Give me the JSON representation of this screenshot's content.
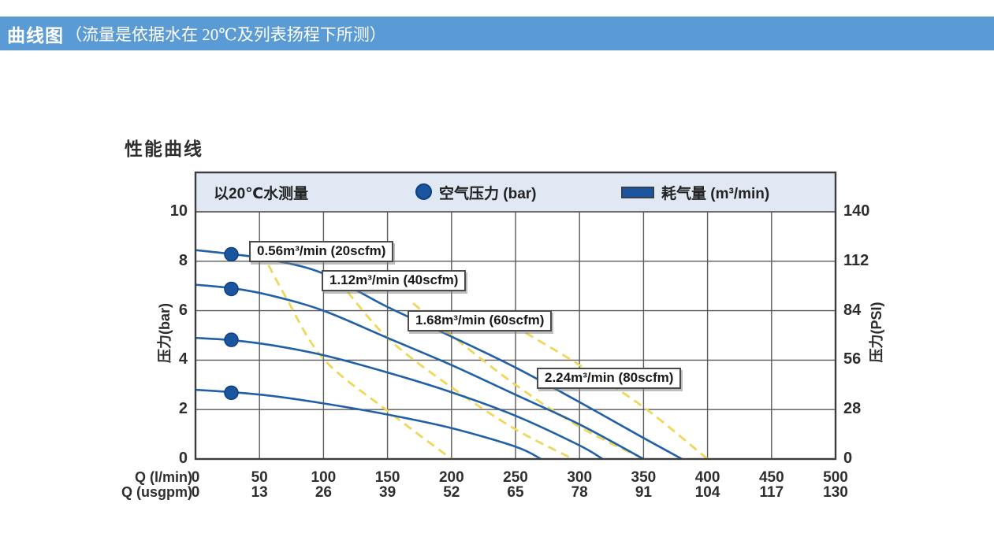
{
  "header": {
    "title_bold": "曲线图",
    "title_rest": "（流量是依据水在 20℃及列表扬程下所测）",
    "bg_color": "#5b9bd5",
    "text_color": "#ffffff"
  },
  "chart_data": {
    "type": "line",
    "title": "性能曲线",
    "legend": {
      "note": "以20℃水测量",
      "pressure_label": "空气压力 (bar)",
      "consumption_label": "耗气量 (m³/min)",
      "position": "top-band"
    },
    "grid": true,
    "axes": {
      "y_left": {
        "label": "压力(bar)",
        "range": [
          0,
          10
        ],
        "ticks": [
          0,
          2,
          4,
          6,
          8,
          10
        ]
      },
      "y_right": {
        "label": "压力(PSI)",
        "range": [
          0,
          140
        ],
        "ticks": [
          0,
          28,
          56,
          84,
          112,
          140
        ]
      },
      "x_lmin": {
        "label": "Q (l/min)",
        "range": [
          0,
          500
        ],
        "ticks": [
          0,
          50,
          100,
          150,
          200,
          250,
          300,
          350,
          400,
          450,
          500
        ]
      },
      "x_usgpm": {
        "label": "Q (usgpm)",
        "ticks": [
          0,
          13,
          26,
          39,
          52,
          65,
          78,
          91,
          104,
          117,
          130
        ]
      }
    },
    "pressure_curves": [
      {
        "name": "air-pressure-curve-1",
        "marker_at": [
          28,
          8.28
        ],
        "points": [
          [
            0,
            8.45
          ],
          [
            30,
            8.28
          ],
          [
            60,
            8.05
          ],
          [
            100,
            7.5
          ],
          [
            150,
            6.15
          ],
          [
            200,
            4.95
          ],
          [
            250,
            3.7
          ],
          [
            300,
            2.3
          ],
          [
            350,
            0.85
          ],
          [
            380,
            0
          ]
        ]
      },
      {
        "name": "air-pressure-curve-2",
        "marker_at": [
          28,
          6.88
        ],
        "points": [
          [
            0,
            7.05
          ],
          [
            30,
            6.9
          ],
          [
            60,
            6.6
          ],
          [
            100,
            6.0
          ],
          [
            150,
            4.9
          ],
          [
            200,
            3.8
          ],
          [
            250,
            2.6
          ],
          [
            300,
            1.4
          ],
          [
            350,
            0
          ]
        ]
      },
      {
        "name": "air-pressure-curve-3",
        "marker_at": [
          28,
          4.82
        ],
        "points": [
          [
            0,
            4.9
          ],
          [
            30,
            4.8
          ],
          [
            60,
            4.6
          ],
          [
            100,
            4.2
          ],
          [
            150,
            3.5
          ],
          [
            200,
            2.7
          ],
          [
            250,
            1.75
          ],
          [
            300,
            0.55
          ],
          [
            318,
            0
          ]
        ]
      },
      {
        "name": "air-pressure-curve-4",
        "marker_at": [
          28,
          2.68
        ],
        "points": [
          [
            0,
            2.8
          ],
          [
            30,
            2.7
          ],
          [
            60,
            2.55
          ],
          [
            100,
            2.25
          ],
          [
            150,
            1.8
          ],
          [
            200,
            1.25
          ],
          [
            250,
            0.5
          ],
          [
            270,
            0
          ]
        ]
      }
    ],
    "consumption_curves": [
      {
        "label": "0.56m³/min (20scfm)",
        "points": [
          [
            52,
            8.35
          ],
          [
            70,
            6.6
          ],
          [
            100,
            4.05
          ],
          [
            150,
            1.95
          ],
          [
            200,
            0
          ]
        ]
      },
      {
        "label": "1.12m³/min (40scfm)",
        "points": [
          [
            112,
            7.2
          ],
          [
            150,
            4.9
          ],
          [
            200,
            2.9
          ],
          [
            250,
            1.2
          ],
          [
            295,
            0
          ]
        ]
      },
      {
        "label": "1.68m³/min (60scfm)",
        "points": [
          [
            170,
            6.3
          ],
          [
            200,
            5.0
          ],
          [
            250,
            3.0
          ],
          [
            300,
            1.3
          ],
          [
            350,
            0
          ]
        ]
      },
      {
        "label": "2.24m³/min (80scfm)",
        "points": [
          [
            258,
            5.1
          ],
          [
            300,
            3.8
          ],
          [
            350,
            2.1
          ],
          [
            400,
            0
          ]
        ]
      }
    ],
    "colors": {
      "curve_blue": "#2160a6",
      "marker_blue": "#1b55a0",
      "marker_border": "#0e3f7e",
      "consumption_yellow": "#eed75a",
      "grid": "#5a5a5a",
      "frame": "#3d3d3d",
      "legend_band": "#e0e8f4"
    }
  }
}
